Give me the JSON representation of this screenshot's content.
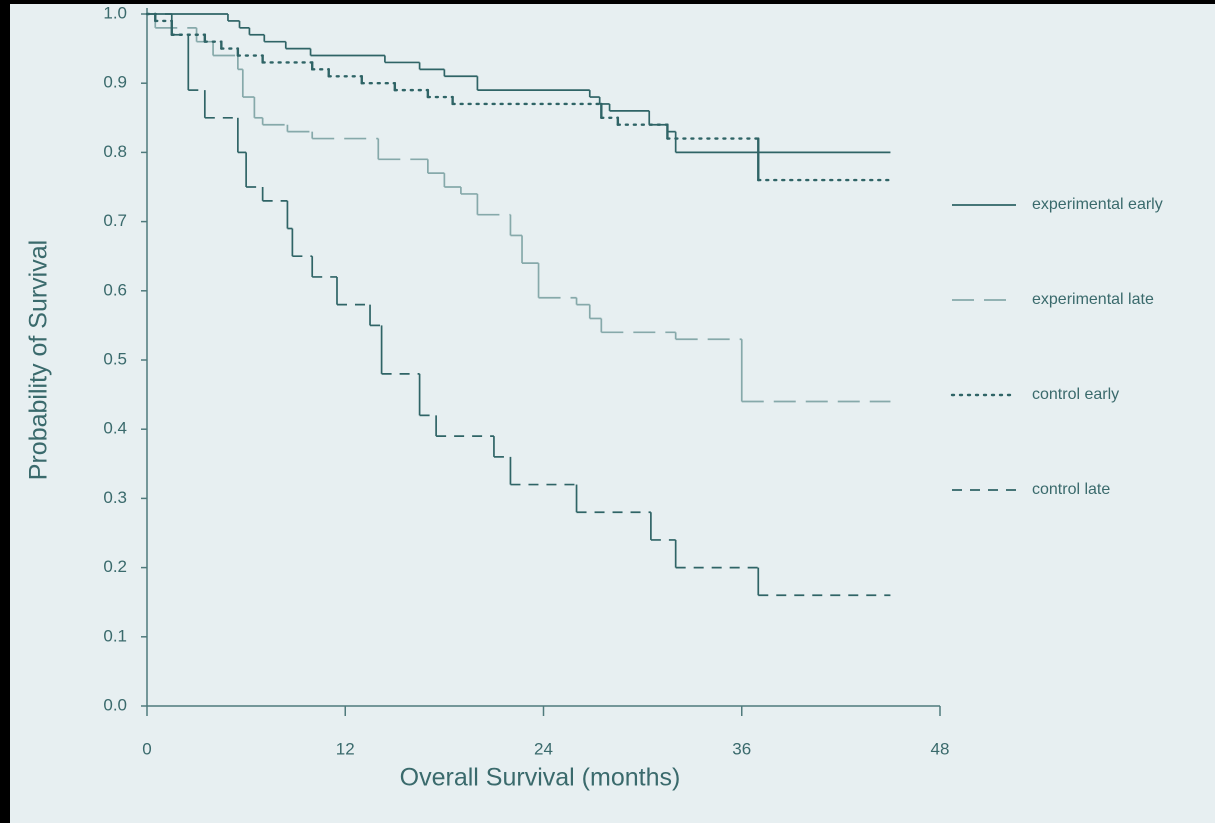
{
  "chart_data": {
    "type": "line",
    "step": true,
    "x_label": "Overall Survival (months)",
    "y_label": "Probability of Survival",
    "xlim": [
      0,
      48
    ],
    "ylim": [
      0,
      1
    ],
    "xticks": [
      0,
      12,
      24,
      36,
      48
    ],
    "yticks": [
      {
        "value": 0,
        "label": "0.0"
      },
      0.1,
      0.2,
      0.3,
      0.4,
      0.5,
      0.6,
      0.7,
      0.8,
      0.9,
      {
        "value": 1,
        "label": "1.0"
      }
    ],
    "legend": "right",
    "series": [
      {
        "name": "experimental early",
        "color": "#2f6466",
        "dash": "solid",
        "x": [
          0,
          4.9,
          5.6,
          6.2,
          7.1,
          8.4,
          9.9,
          14.4,
          16.5,
          18,
          20,
          26.8,
          27.4,
          28,
          30.4,
          31.5,
          32,
          45
        ],
        "values": [
          1.0,
          0.99,
          0.98,
          0.97,
          0.96,
          0.95,
          0.94,
          0.93,
          0.92,
          0.91,
          0.89,
          0.88,
          0.87,
          0.86,
          0.84,
          0.83,
          0.8,
          0.8
        ]
      },
      {
        "name": "experimental late",
        "color": "#86a9aa",
        "dash": "long",
        "x": [
          0,
          0.5,
          3,
          4,
          5.5,
          5.8,
          6.5,
          7,
          8.5,
          10,
          14,
          17,
          18,
          19,
          20,
          22,
          22.7,
          23.7,
          26,
          26.8,
          27.5,
          32,
          36,
          45
        ],
        "values": [
          1.0,
          0.98,
          0.96,
          0.94,
          0.92,
          0.88,
          0.85,
          0.84,
          0.83,
          0.82,
          0.79,
          0.77,
          0.75,
          0.74,
          0.71,
          0.68,
          0.64,
          0.59,
          0.58,
          0.56,
          0.54,
          0.53,
          0.44,
          0.44
        ]
      },
      {
        "name": "control early",
        "color": "#2f6466",
        "dash": "dotted",
        "x": [
          0,
          0.5,
          1.5,
          3.5,
          4.5,
          5.5,
          7,
          10,
          11,
          13,
          15,
          17,
          18.5,
          27.5,
          28.5,
          31.5,
          37,
          45
        ],
        "values": [
          1.0,
          0.99,
          0.97,
          0.96,
          0.95,
          0.94,
          0.93,
          0.92,
          0.91,
          0.9,
          0.89,
          0.88,
          0.87,
          0.85,
          0.84,
          0.82,
          0.76,
          0.76
        ]
      },
      {
        "name": "control late",
        "color": "#2f6466",
        "dash": "short",
        "x": [
          0,
          1.5,
          2.5,
          3.5,
          5.5,
          6,
          7,
          8.5,
          8.8,
          10,
          11.5,
          13.5,
          14.2,
          16.5,
          17.5,
          21,
          22,
          26,
          30.5,
          32,
          37,
          45
        ],
        "values": [
          1.0,
          0.97,
          0.89,
          0.85,
          0.8,
          0.75,
          0.73,
          0.69,
          0.65,
          0.62,
          0.58,
          0.55,
          0.48,
          0.42,
          0.39,
          0.36,
          0.32,
          0.28,
          0.24,
          0.2,
          0.16,
          0.16
        ]
      }
    ]
  }
}
